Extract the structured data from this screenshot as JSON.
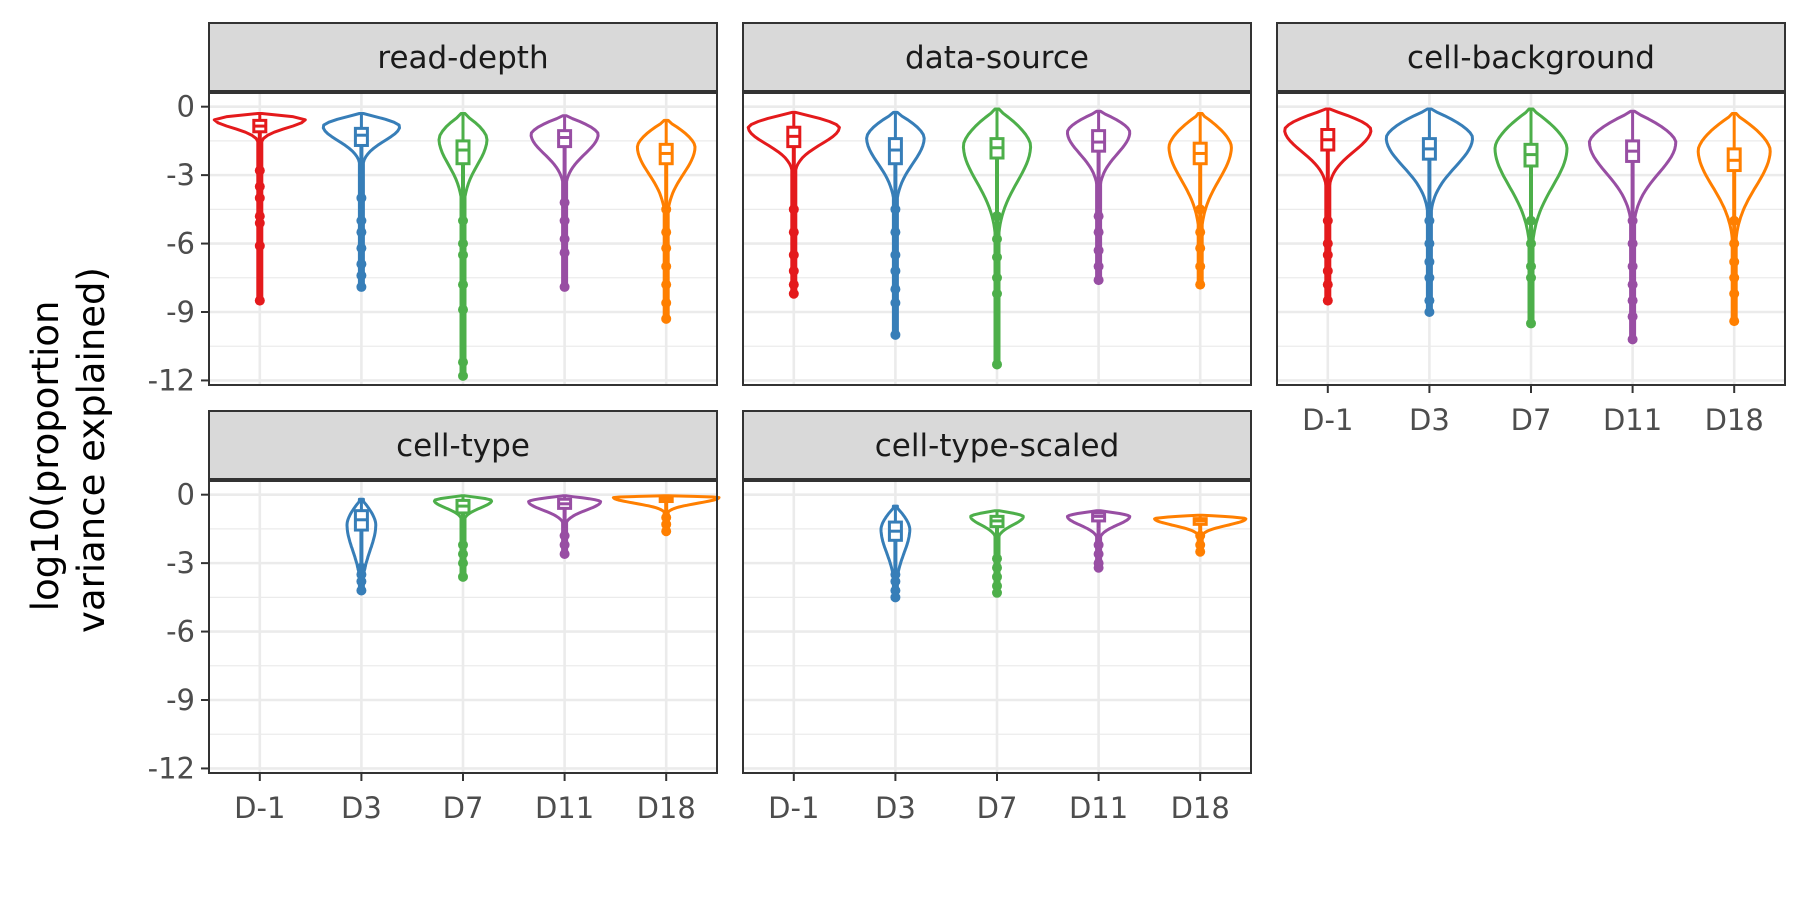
{
  "chart_data": {
    "type": "violin",
    "ylabel_lines": [
      "log10(proportion",
      "variance explained)"
    ],
    "categories": [
      "D-1",
      "D3",
      "D7",
      "D11",
      "D18"
    ],
    "y_ticks": [
      0,
      -3,
      -6,
      -9,
      -12
    ],
    "y_tick_labels": [
      "0",
      "-3",
      "-6",
      "-9",
      "-12"
    ],
    "ylim": [
      -12.2,
      0.6
    ],
    "grid": true,
    "legend": "none",
    "colors": [
      "#e41a1c",
      "#377eb8",
      "#4daf4a",
      "#984ea3",
      "#ff7f00"
    ],
    "panels": [
      {
        "title": "read-depth",
        "series": [
          {
            "category": "D-1",
            "top": -0.3,
            "mode": -0.55,
            "width": 0.95,
            "q1": -1.1,
            "median": -0.85,
            "q3": -0.6,
            "min": -8.5,
            "outliers": [
              -2.8,
              -3.5,
              -4.0,
              -4.8,
              -5.1,
              -6.1
            ]
          },
          {
            "category": "D3",
            "top": -0.3,
            "mode": -0.85,
            "width": 0.8,
            "q1": -1.7,
            "median": -1.25,
            "q3": -0.95,
            "min": -7.9,
            "outliers": [
              -4.0,
              -5.0,
              -5.5,
              -6.2,
              -6.9,
              -7.4
            ]
          },
          {
            "category": "D7",
            "top": -0.3,
            "mode": -1.4,
            "width": 0.5,
            "q1": -2.5,
            "median": -1.9,
            "q3": -1.5,
            "min": -11.8,
            "outliers": [
              -5.0,
              -6.0,
              -6.5,
              -7.8,
              -8.9,
              -11.2
            ]
          },
          {
            "category": "D11",
            "top": -0.4,
            "mode": -1.2,
            "width": 0.7,
            "q1": -1.75,
            "median": -1.35,
            "q3": -1.05,
            "min": -7.9,
            "outliers": [
              -4.2,
              -5.0,
              -5.8,
              -6.4
            ]
          },
          {
            "category": "D18",
            "top": -0.6,
            "mode": -1.75,
            "width": 0.6,
            "q1": -2.5,
            "median": -2.05,
            "q3": -1.65,
            "min": -9.3,
            "outliers": [
              -4.5,
              -5.5,
              -6.2,
              -7.0,
              -7.8,
              -8.6
            ]
          }
        ]
      },
      {
        "title": "data-source",
        "series": [
          {
            "category": "D-1",
            "top": -0.25,
            "mode": -0.9,
            "width": 0.95,
            "q1": -1.75,
            "median": -1.3,
            "q3": -0.9,
            "min": -8.2,
            "outliers": [
              -4.5,
              -5.5,
              -6.5,
              -7.2,
              -7.8
            ]
          },
          {
            "category": "D3",
            "top": -0.25,
            "mode": -1.35,
            "width": 0.6,
            "q1": -2.5,
            "median": -1.9,
            "q3": -1.4,
            "min": -10.0,
            "outliers": [
              -4.5,
              -5.5,
              -6.5,
              -7.2,
              -8.0,
              -8.6
            ]
          },
          {
            "category": "D7",
            "top": -0.1,
            "mode": -1.7,
            "width": 0.7,
            "q1": -2.25,
            "median": -1.8,
            "q3": -1.4,
            "min": -11.3,
            "outliers": [
              -4.8,
              -5.8,
              -6.6,
              -7.5,
              -8.2
            ]
          },
          {
            "category": "D11",
            "top": -0.2,
            "mode": -1.1,
            "width": 0.65,
            "q1": -1.95,
            "median": -1.55,
            "q3": -1.05,
            "min": -7.6,
            "outliers": [
              -4.8,
              -5.5,
              -6.3,
              -7.0
            ]
          },
          {
            "category": "D18",
            "top": -0.3,
            "mode": -1.75,
            "width": 0.65,
            "q1": -2.5,
            "median": -2.05,
            "q3": -1.6,
            "min": -7.8,
            "outliers": [
              -4.5,
              -5.5,
              -6.2,
              -7.0
            ]
          }
        ]
      },
      {
        "title": "cell-background",
        "series": [
          {
            "category": "D-1",
            "top": -0.1,
            "mode": -1.0,
            "width": 0.9,
            "q1": -1.9,
            "median": -1.45,
            "q3": -1.0,
            "min": -8.5,
            "outliers": [
              -5.0,
              -6.0,
              -6.5,
              -7.2,
              -7.8
            ]
          },
          {
            "category": "D3",
            "top": -0.1,
            "mode": -1.35,
            "width": 0.9,
            "q1": -2.3,
            "median": -1.85,
            "q3": -1.4,
            "min": -9.0,
            "outliers": [
              -5.0,
              -6.0,
              -6.8,
              -7.5,
              -8.5
            ]
          },
          {
            "category": "D7",
            "top": -0.1,
            "mode": -1.8,
            "width": 0.75,
            "q1": -2.6,
            "median": -2.1,
            "q3": -1.65,
            "min": -9.5,
            "outliers": [
              -5.0,
              -6.0,
              -7.0,
              -7.5
            ]
          },
          {
            "category": "D11",
            "top": -0.2,
            "mode": -1.55,
            "width": 0.9,
            "q1": -2.4,
            "median": -1.95,
            "q3": -1.5,
            "min": -10.2,
            "outliers": [
              -5.0,
              -6.0,
              -7.0,
              -7.8,
              -8.5,
              -9.2
            ]
          },
          {
            "category": "D18",
            "top": -0.3,
            "mode": -1.9,
            "width": 0.75,
            "q1": -2.8,
            "median": -2.35,
            "q3": -1.85,
            "min": -9.4,
            "outliers": [
              -5.0,
              -6.0,
              -6.8,
              -7.5,
              -8.2
            ]
          }
        ]
      },
      {
        "title": "cell-type",
        "series": [
          {
            "category": "D3",
            "top": -0.2,
            "mode": -1.3,
            "width": 0.3,
            "q1": -1.55,
            "median": -1.1,
            "q3": -0.7,
            "min": -4.2,
            "outliers": [
              -3.2,
              -3.5,
              -3.8
            ]
          },
          {
            "category": "D7",
            "top": -0.05,
            "mode": -0.25,
            "width": 0.6,
            "q1": -0.8,
            "median": -0.5,
            "q3": -0.25,
            "min": -3.6,
            "outliers": [
              -2.2,
              -2.6,
              -3.0
            ]
          },
          {
            "category": "D11",
            "top": -0.05,
            "mode": -0.3,
            "width": 0.75,
            "q1": -0.6,
            "median": -0.4,
            "q3": -0.2,
            "min": -2.6,
            "outliers": [
              -1.8,
              -2.2
            ]
          },
          {
            "category": "D18",
            "top": -0.05,
            "mode": -0.12,
            "width": 1.1,
            "q1": -0.3,
            "median": -0.18,
            "q3": -0.1,
            "min": -1.6,
            "outliers": [
              -1.0,
              -1.3
            ]
          }
        ]
      },
      {
        "title": "cell-type-scaled",
        "series": [
          {
            "category": "D3",
            "top": -0.5,
            "mode": -1.5,
            "width": 0.3,
            "q1": -2.0,
            "median": -1.6,
            "q3": -1.2,
            "min": -4.5,
            "outliers": [
              -3.5,
              -3.8,
              -4.2
            ]
          },
          {
            "category": "D7",
            "top": -0.7,
            "mode": -0.95,
            "width": 0.55,
            "q1": -1.4,
            "median": -1.15,
            "q3": -0.95,
            "min": -4.3,
            "outliers": [
              -2.8,
              -3.2,
              -3.6,
              -4.0
            ]
          },
          {
            "category": "D11",
            "top": -0.7,
            "mode": -0.95,
            "width": 0.65,
            "q1": -1.15,
            "median": -0.95,
            "q3": -0.8,
            "min": -3.2,
            "outliers": [
              -2.2,
              -2.6,
              -3.0
            ]
          },
          {
            "category": "D18",
            "top": -0.9,
            "mode": -1.05,
            "width": 0.95,
            "q1": -1.3,
            "median": -1.15,
            "q3": -1.05,
            "min": -2.5,
            "outliers": [
              -1.8,
              -2.2
            ]
          }
        ]
      }
    ]
  }
}
